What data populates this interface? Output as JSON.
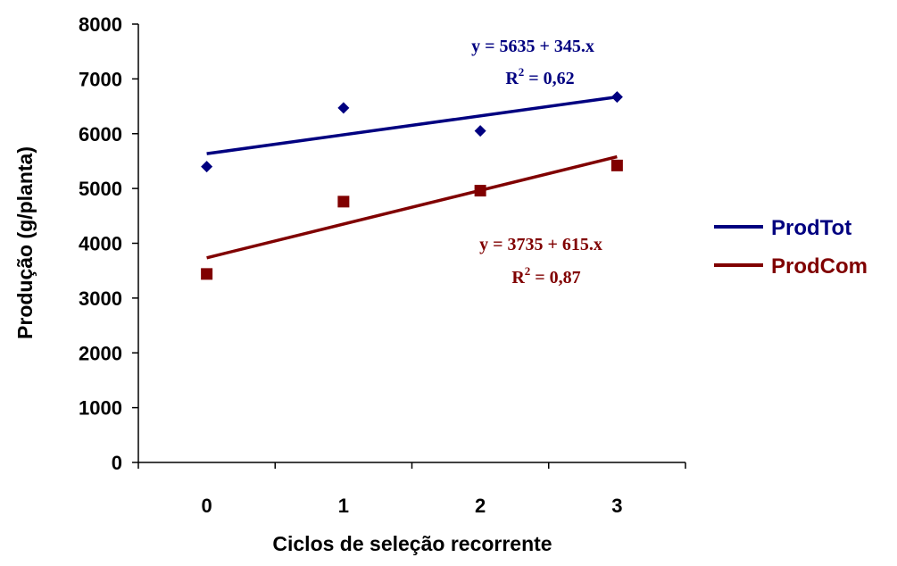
{
  "chart_data": {
    "type": "scatter",
    "title": "",
    "xlabel": "Ciclos de seleção recorrente",
    "ylabel": "Produção (g/planta)",
    "categories": [
      "0",
      "1",
      "2",
      "3"
    ],
    "x": [
      0,
      1,
      2,
      3
    ],
    "ylim": [
      0,
      8000
    ],
    "yticks": [
      "0",
      "1000",
      "2000",
      "3000",
      "4000",
      "5000",
      "6000",
      "7000",
      "8000"
    ],
    "grid": false,
    "legend_position": "right",
    "series": [
      {
        "name": "ProdTot",
        "color": "#000080",
        "marker": "diamond",
        "values": [
          5400,
          6470,
          6050,
          6670
        ],
        "trendline": {
          "intercept": 5635,
          "slope": 345
        },
        "equation": "y = 5635 + 345.x",
        "r2_prefix": "R",
        "r2_sup": "2",
        "r2_value": " = 0,62"
      },
      {
        "name": "ProdCom",
        "color": "#800000",
        "marker": "square",
        "values": [
          3440,
          4760,
          4960,
          5420
        ],
        "trendline": {
          "intercept": 3735,
          "slope": 615
        },
        "equation": "y = 3735 + 615.x",
        "r2_prefix": "R",
        "r2_sup": "2",
        "r2_value": " = 0,87"
      }
    ]
  }
}
